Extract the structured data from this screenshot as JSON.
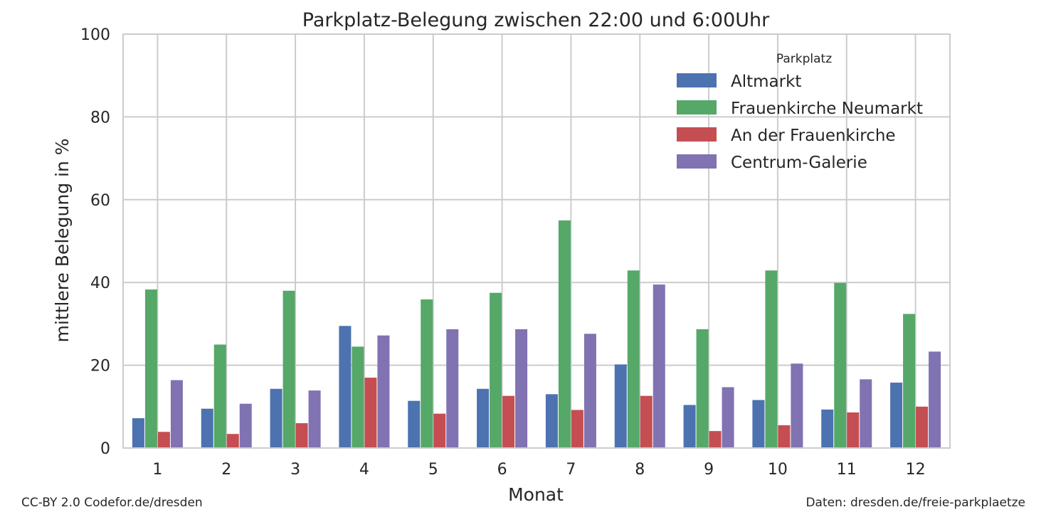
{
  "chart_data": {
    "type": "bar",
    "title": "Parkplatz-Belegung zwischen 22:00 und 6:00Uhr",
    "xlabel": "Monat",
    "ylabel": "mittlere Belegung in %",
    "ylim": [
      0,
      100
    ],
    "yticks": [
      "0",
      "20",
      "40",
      "60",
      "80",
      "100"
    ],
    "grid": true,
    "categories": [
      "1",
      "2",
      "3",
      "4",
      "5",
      "6",
      "7",
      "8",
      "9",
      "10",
      "11",
      "12"
    ],
    "legend": {
      "title": "Parkplatz",
      "placement": "top-right"
    },
    "series": [
      {
        "name": "Altmarkt",
        "color": "#4c72b0",
        "values": [
          7.2,
          9.5,
          14.3,
          29.5,
          11.4,
          14.3,
          13.0,
          20.2,
          10.4,
          11.6,
          9.3,
          15.8
        ]
      },
      {
        "name": "Frauenkirche Neumarkt",
        "color": "#55a868",
        "values": [
          38.3,
          25.0,
          38.0,
          24.5,
          35.9,
          37.5,
          55.0,
          42.9,
          28.7,
          42.9,
          39.9,
          32.4
        ]
      },
      {
        "name": "An der Frauenkirche",
        "color": "#c44e52",
        "values": [
          3.9,
          3.4,
          6.0,
          17.0,
          8.3,
          12.6,
          9.2,
          12.6,
          4.1,
          5.5,
          8.6,
          10.0
        ]
      },
      {
        "name": "Centrum-Galerie",
        "color": "#8172b2",
        "values": [
          16.4,
          10.7,
          13.9,
          27.2,
          28.7,
          28.7,
          27.6,
          39.5,
          14.7,
          20.4,
          16.6,
          23.3
        ]
      }
    ]
  },
  "footer": {
    "license": "CC-BY 2.0 Codefor.de/dresden",
    "source": "Daten: dresden.de/freie-parkplaetze"
  }
}
